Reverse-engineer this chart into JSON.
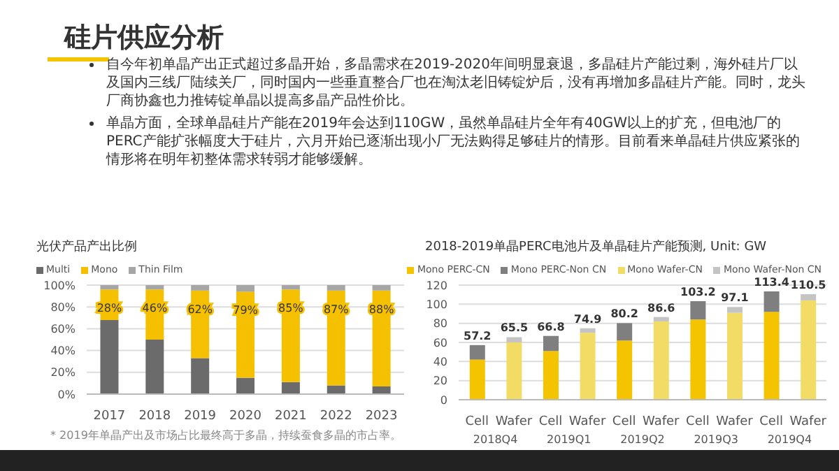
{
  "chart_data": [
    {
      "type": "other",
      "title": "硅片供应分析",
      "annotations": [
        "自今年初单晶产出正式超过多晶开始，多晶需求在2019-2020年间明显衰退，多晶硅片产能过剩，海外硅片厂以及国内三线厂陆续关厂，同时国内一些垂直整合厂也在淘汰老旧铸锭炉后，没有再增加多晶硅片产能。同时，龙头厂商协鑫也力推铸锭单晶以提高多晶产品性价比。",
        "单晶方面，全球单晶硅片产能在2019年会达到110GW，虽然单晶硅片全年有40GW以上的扩充，但电池厂的PERC产能扩张幅度大于硅片，六月开始已逐渐出现小厂无法购得足够硅片的情形。目前看来单晶硅片供应紧张的情形将在明年初整体需求转弱才能够缓解。"
      ]
    },
    {
      "type": "bar",
      "stacked": true,
      "title": "光伏产品产出比例",
      "categories": [
        "2017",
        "2018",
        "2019",
        "2020",
        "2021",
        "2022",
        "2023"
      ],
      "series": [
        {
          "name": "Multi",
          "color": "#6b6b6b",
          "values": [
            68,
            50,
            33,
            15,
            11,
            8,
            7
          ]
        },
        {
          "name": "Mono",
          "color": "#f5c000",
          "values": [
            28,
            46,
            62,
            79,
            85,
            87,
            88
          ],
          "value_labels": [
            "28%",
            "46%",
            "62%",
            "79%",
            "85%",
            "87%",
            "88%"
          ]
        },
        {
          "name": "Thin Film",
          "color": "#a6a6a6",
          "values": [
            4,
            4,
            5,
            6,
            4,
            5,
            5
          ]
        }
      ],
      "ylim": [
        0,
        100
      ],
      "yticks": [
        {
          "value": 0,
          "label": "0%"
        },
        {
          "value": 20,
          "label": "20%"
        },
        {
          "value": 40,
          "label": "40%"
        },
        {
          "value": 60,
          "label": "60%"
        },
        {
          "value": 80,
          "label": "80%"
        },
        {
          "value": 100,
          "label": "100%"
        }
      ],
      "grid": "y",
      "legend": "top left",
      "annotations": [
        "* 2019年单晶产出及市场占比最终高于多晶，持续蚕食多晶的市占率。"
      ]
    },
    {
      "type": "bar",
      "stacked": true,
      "title": "2018-2019单晶PERC电池片及单晶硅片产能预测, Unit: GW",
      "categories": [
        "Cell",
        "Wafer",
        "Cell",
        "Wafer",
        "Cell",
        "Wafer",
        "Cell",
        "Wafer",
        "Cell",
        "Wafer"
      ],
      "series": [
        {
          "name": "Mono PERC-CN",
          "color": "#f5c400",
          "values": [
            42,
            null,
            51,
            null,
            62,
            null,
            84,
            null,
            92,
            null
          ]
        },
        {
          "name": "Mono PERC-Non CN",
          "color": "#7f7f7f",
          "values": [
            15.2,
            null,
            15.8,
            null,
            18.2,
            null,
            19.2,
            null,
            21.4,
            null
          ]
        },
        {
          "name": "Mono Wafer-CN",
          "color": "#f3dc66",
          "values": [
            null,
            60,
            null,
            70,
            null,
            82,
            null,
            91,
            null,
            104
          ]
        },
        {
          "name": "Mono Wafer-Non CN",
          "color": "#c4c4c4",
          "values": [
            null,
            5.5,
            null,
            4.9,
            null,
            4.6,
            null,
            6.1,
            null,
            6.5
          ]
        }
      ],
      "totals": [
        "57.2",
        "65.5",
        "66.8",
        "74.9",
        "80.2",
        "86.6",
        "103.2",
        "97.1",
        "113.4",
        "110.5"
      ],
      "ylim": [
        0,
        120
      ],
      "yticks": [
        0,
        20,
        40,
        60,
        80,
        100,
        120
      ],
      "grid": "y",
      "legend": "top",
      "annotations": [
        "2018Q4",
        "2019Q1",
        "2019Q2",
        "2019Q3",
        "2019Q4"
      ]
    }
  ]
}
